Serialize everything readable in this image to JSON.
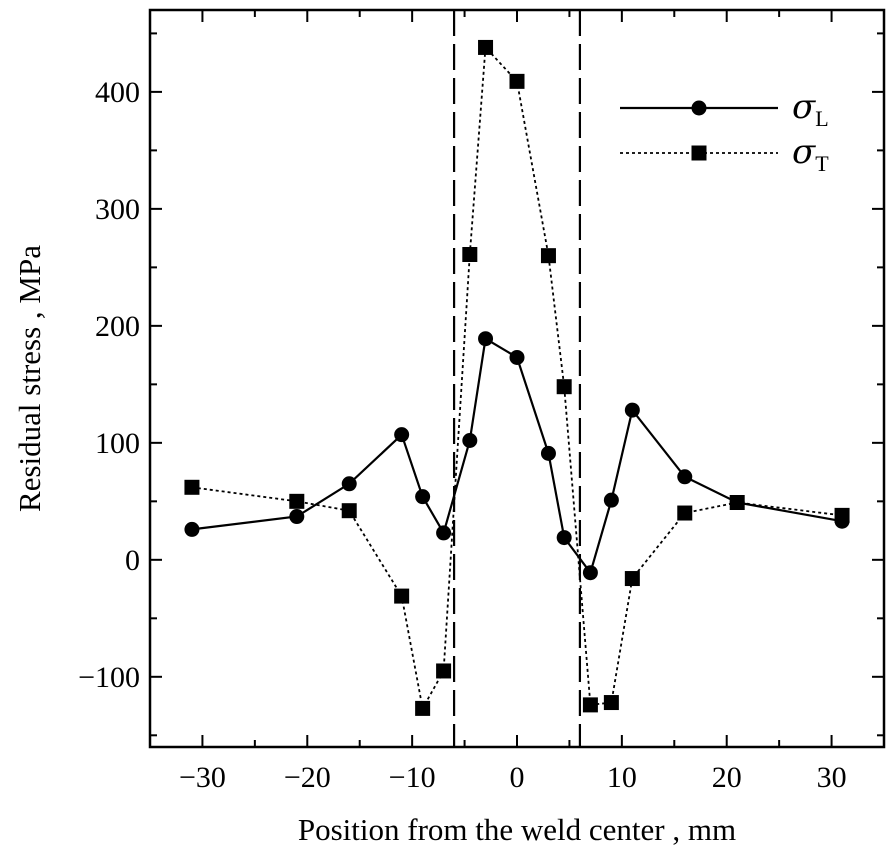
{
  "chart_data": {
    "type": "line",
    "xlabel": "Position from the weld center , mm",
    "ylabel": "Residual stress , MPa",
    "xlim": [
      -35,
      35
    ],
    "ylim": [
      -160,
      470
    ],
    "xticks": [
      -30,
      -20,
      -10,
      0,
      10,
      20,
      30
    ],
    "yticks": [
      -100,
      0,
      100,
      200,
      300,
      400
    ],
    "xtick_labels": [
      "−30",
      "−20",
      "−10",
      "0",
      "10",
      "20",
      "30"
    ],
    "ytick_labels": [
      "−100",
      "0",
      "100",
      "200",
      "300",
      "400"
    ],
    "grid": false,
    "legend_position": "top-right",
    "reference_lines_x": [
      -6,
      6
    ],
    "series": [
      {
        "name": "σL",
        "symbol": "σ",
        "subscript": "L",
        "marker": "circle",
        "line": "solid",
        "color": "#000000",
        "x": [
          -31,
          -21,
          -16,
          -11,
          -9,
          -7,
          -4.5,
          -3,
          0,
          3,
          4.5,
          7,
          9,
          11,
          16,
          21,
          31
        ],
        "y": [
          26,
          37,
          65,
          107,
          54,
          23,
          102,
          189,
          173,
          91,
          19,
          -11,
          51,
          128,
          71,
          49,
          33
        ]
      },
      {
        "name": "σT",
        "symbol": "σ",
        "subscript": "T",
        "marker": "square",
        "line": "dotted",
        "color": "#000000",
        "x": [
          -31,
          -21,
          -16,
          -11,
          -9,
          -7,
          -4.5,
          -3,
          0,
          3,
          4.5,
          7,
          9,
          11,
          16,
          21,
          31
        ],
        "y": [
          62,
          50,
          42,
          -31,
          -127,
          -95,
          261,
          438,
          409,
          260,
          148,
          -124,
          -122,
          -16,
          40,
          49,
          38
        ]
      }
    ]
  }
}
